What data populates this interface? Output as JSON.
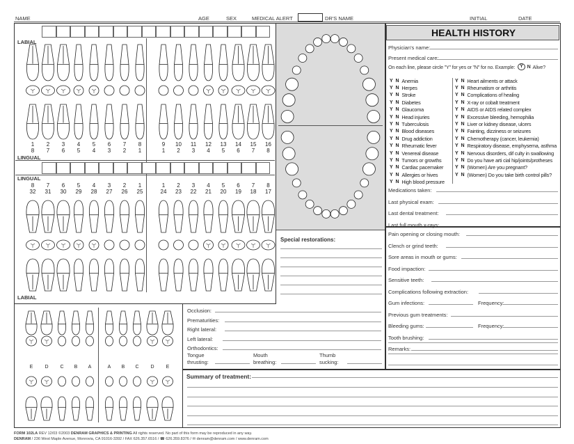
{
  "header": {
    "name": "NAME",
    "age": "AGE",
    "sex": "SEX",
    "medical_alert": "MEDICAL ALERT",
    "drs_name": "DR'S NAME",
    "initial": "INITIAL",
    "date": "DATE"
  },
  "chart": {
    "labial": "LABIAL",
    "lingual": "LINGUAL",
    "upper_numbers": [
      "1",
      "2",
      "3",
      "4",
      "5",
      "6",
      "7",
      "8",
      "9",
      "10",
      "11",
      "12",
      "13",
      "14",
      "15",
      "16"
    ],
    "upper_quadrant": [
      "8",
      "7",
      "6",
      "5",
      "4",
      "3",
      "2",
      "1",
      "1",
      "2",
      "3",
      "4",
      "5",
      "6",
      "7",
      "8"
    ],
    "lower_quadrant": [
      "8",
      "7",
      "6",
      "5",
      "4",
      "3",
      "2",
      "1",
      "1",
      "2",
      "3",
      "4",
      "5",
      "6",
      "7",
      "8"
    ],
    "lower_numbers": [
      "32",
      "31",
      "30",
      "29",
      "28",
      "27",
      "26",
      "25",
      "24",
      "23",
      "22",
      "21",
      "20",
      "19",
      "18",
      "17"
    ],
    "deciduous_letters": [
      "E",
      "D",
      "C",
      "B",
      "A",
      "A",
      "B",
      "C",
      "D",
      "E"
    ]
  },
  "special_restorations": "Special restorations:",
  "health_history": {
    "title": "HEALTH HISTORY",
    "physician": "Physician's name:",
    "present_care": "Present medical care:",
    "instructions": "On each line, please circle \"Y\" for yes or \"N\" for no.  Example:",
    "example_y": "Y",
    "example_n": "N",
    "example_text": "Alive?",
    "y": "Y",
    "n": "N",
    "left_items": [
      "Anemia",
      "Herpes",
      "Stroke",
      "Diabetes",
      "Glaucoma",
      "Head injuries",
      "Tuberculosis",
      "Blood diseases",
      "Drug addiction",
      "Rheumatic fever",
      "Venereal disease",
      "Tumors or growths",
      "Cardiac pacemaker",
      "Allergies or hives",
      "High blood pressure"
    ],
    "right_items": [
      "Heart ailments or attack",
      "Rheumatism or arthritis",
      "Complications of healing",
      "X-ray or cobalt treatment",
      "AIDS or AIDS related complex",
      "Excessive bleeding, hemophilia",
      "Liver or kidney disease, ulcers",
      "Fainting, dizziness or seizures",
      "Chemotherapy (cancer, leukemia)",
      "Respiratory disease, emphysema, asthma",
      "Nervous disorders, dif culty in swallowing",
      "Do you have arti cial hip/joints/protheses",
      "(Women) Are you pregnant?",
      "(Women) Do you take birth control pills?"
    ],
    "fields": [
      "Medications taken:",
      "Last physical exam:",
      "Last dental treatment:",
      "Last full mouth x-rays:"
    ]
  },
  "dental_history": {
    "fields": [
      "Pain opening or closing mouth:",
      "Clench or grind teeth:",
      "Sore areas in mouth or gums:",
      "Food impaction:",
      "Sensitive teeth:",
      "Complications following extraction:",
      "Gum infections:",
      "Previous gum treatments:",
      "Bleeding gums:",
      "Tooth brushing:",
      "Remarks:"
    ],
    "frequency": "Frequency:"
  },
  "occlusion": {
    "fields": [
      "Occlusion:",
      "Prematurities:",
      "Right lateral:",
      "Left lateral:",
      "Orthodontics:"
    ],
    "habits": [
      {
        "l1": "Tongue",
        "l2": "thrusting:"
      },
      {
        "l1": "Mouth",
        "l2": "breathing:"
      },
      {
        "l1": "Thumb",
        "l2": "sucking:"
      }
    ]
  },
  "summary": "Summary of treatment:",
  "footer": {
    "form": "FORM 102LA",
    "rev": "REV 12/03  ©2003",
    "company": "DENRAM GRAPHICS & PRINTING",
    "rights": "All rights reserved.  No part of this form may be reproduced in any way.",
    "brand": "DENRAM",
    "address": "/ 236 West Maple Avenue, Monrovia, CA 91016-3392  /  FAX 626.357.6516  /  ☎ 626.359.8376  /  ✉ denram@denram.com  /  www.denram.com"
  }
}
